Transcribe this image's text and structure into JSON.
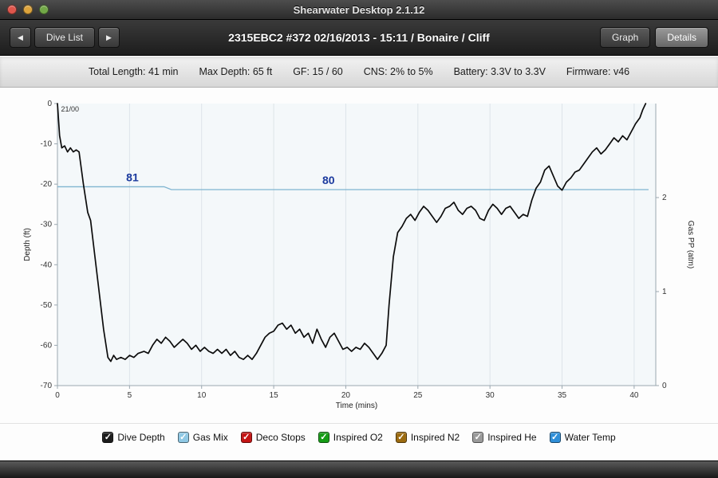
{
  "window": {
    "title": "Shearwater Desktop 2.1.12"
  },
  "nav": {
    "left_arrow": "◀",
    "right_arrow": "▶",
    "dive_list_label": "Dive List",
    "title": "2315EBC2 #372 02/16/2013 - 15:11  / Bonaire / Cliff",
    "graph_label": "Graph",
    "details_label": "Details"
  },
  "info_bar": {
    "items": [
      {
        "label": "Total Length:",
        "value": "41 min"
      },
      {
        "label": "Max Depth:",
        "value": "65 ft"
      },
      {
        "label": "GF:",
        "value": "15 / 60"
      },
      {
        "label": "CNS:",
        "value": "2% to 5%"
      },
      {
        "label": "Battery:",
        "value": "3.3V to 3.3V"
      },
      {
        "label": "Firmware:",
        "value": "v46"
      }
    ]
  },
  "chart_data": {
    "type": "line",
    "xlabel": "Time (mins)",
    "ylabel_left": "Depth (ft)",
    "ylabel_right": "Gas PP (atm)",
    "xlim": [
      0,
      41.5
    ],
    "ylim_left": [
      -70,
      0
    ],
    "ylim_right": [
      0,
      3
    ],
    "x_ticks": [
      0,
      5,
      10,
      15,
      20,
      25,
      30,
      35,
      40
    ],
    "y_ticks_left": [
      0,
      -10,
      -20,
      -30,
      -40,
      -50,
      -60,
      -70
    ],
    "y_ticks_right": [
      0,
      1,
      2
    ],
    "grid": "vertical",
    "annotation": "21/00",
    "label_color": "#1b3a9e",
    "temp_labels": [
      {
        "text": "81",
        "t": 5.2
      },
      {
        "text": "80",
        "t": 18.8
      }
    ],
    "series": [
      {
        "name": "Dive Depth",
        "color": "#0c0c0c",
        "x": [
          0,
          0.15,
          0.3,
          0.5,
          0.7,
          0.9,
          1.1,
          1.3,
          1.5,
          1.8,
          2.1,
          2.3,
          2.6,
          2.9,
          3.2,
          3.5,
          3.7,
          3.9,
          4.1,
          4.4,
          4.7,
          5,
          5.3,
          5.6,
          6,
          6.3,
          6.6,
          6.9,
          7.2,
          7.5,
          7.8,
          8.1,
          8.4,
          8.7,
          9,
          9.3,
          9.6,
          9.9,
          10.2,
          10.5,
          10.8,
          11.1,
          11.4,
          11.7,
          12,
          12.3,
          12.6,
          12.9,
          13.2,
          13.5,
          13.8,
          14.1,
          14.4,
          14.7,
          15,
          15.3,
          15.6,
          15.9,
          16.2,
          16.5,
          16.8,
          17.1,
          17.4,
          17.7,
          18,
          18.3,
          18.6,
          18.9,
          19.2,
          19.5,
          19.8,
          20.1,
          20.4,
          20.7,
          21,
          21.3,
          21.6,
          21.9,
          22.2,
          22.5,
          22.8,
          23,
          23.3,
          23.6,
          23.9,
          24.2,
          24.5,
          24.8,
          25.1,
          25.4,
          25.7,
          26,
          26.3,
          26.6,
          26.9,
          27.2,
          27.5,
          27.8,
          28.1,
          28.4,
          28.7,
          29,
          29.3,
          29.6,
          29.9,
          30.2,
          30.5,
          30.8,
          31.1,
          31.4,
          31.7,
          32,
          32.3,
          32.6,
          32.9,
          33.2,
          33.5,
          33.8,
          34.1,
          34.4,
          34.7,
          35,
          35.3,
          35.6,
          35.9,
          36.2,
          36.5,
          36.8,
          37.1,
          37.4,
          37.7,
          38,
          38.3,
          38.6,
          38.9,
          39.2,
          39.5,
          39.8,
          40.1,
          40.4,
          40.6,
          40.8
        ],
        "y": [
          0,
          -8,
          -11,
          -10.5,
          -12,
          -11,
          -12,
          -11.5,
          -12,
          -20,
          -27,
          -29,
          -38,
          -47,
          -56,
          -63,
          -64,
          -62.5,
          -63.5,
          -63,
          -63.5,
          -62.5,
          -63,
          -62,
          -61.5,
          -62,
          -60,
          -58.5,
          -59.5,
          -58,
          -59,
          -60.5,
          -59.5,
          -58.5,
          -59.5,
          -61,
          -60,
          -61.5,
          -60.5,
          -61.5,
          -62,
          -61,
          -62,
          -61,
          -62.5,
          -61.5,
          -63,
          -63.5,
          -62.5,
          -63.5,
          -62,
          -60,
          -58,
          -57,
          -56.5,
          -55,
          -54.5,
          -56,
          -55,
          -57,
          -56,
          -58,
          -57,
          -59.5,
          -56,
          -58.5,
          -60.5,
          -58,
          -57,
          -59,
          -61,
          -60.5,
          -61.5,
          -60.5,
          -61,
          -59.5,
          -60.5,
          -62,
          -63.5,
          -62,
          -60,
          -50,
          -38,
          -32,
          -30.5,
          -28.5,
          -27.5,
          -29,
          -27,
          -25.5,
          -26.5,
          -28,
          -29.5,
          -28,
          -26,
          -25.5,
          -24.5,
          -26.5,
          -27.5,
          -26,
          -25.5,
          -26.5,
          -28.5,
          -29,
          -26.5,
          -25,
          -26,
          -27.5,
          -26,
          -25.5,
          -27,
          -28.5,
          -27.5,
          -28,
          -24,
          -21,
          -19.5,
          -16.5,
          -15.5,
          -18,
          -20.5,
          -21.5,
          -19.5,
          -18.5,
          -17,
          -16.5,
          -15,
          -13.5,
          -12,
          -11,
          -12.5,
          -11.5,
          -10,
          -8.5,
          -9.5,
          -8,
          -9,
          -7,
          -5,
          -3.5,
          -1.5,
          0
        ]
      },
      {
        "name": "Water Temp",
        "color": "#7fb4d0",
        "unit": "F",
        "x": [
          0,
          7.4,
          7.9,
          41
        ],
        "y": [
          81,
          81,
          80,
          80
        ]
      }
    ]
  },
  "legend": {
    "items": [
      {
        "label": "Dive Depth",
        "color": "#1c1c1c",
        "checked": true
      },
      {
        "label": "Gas Mix",
        "color": "#8fc8e4",
        "checked": true
      },
      {
        "label": "Deco Stops",
        "color": "#c41414",
        "checked": true
      },
      {
        "label": "Inspired O2",
        "color": "#169c16",
        "checked": true
      },
      {
        "label": "Inspired N2",
        "color": "#9c6b10",
        "checked": true
      },
      {
        "label": "Inspired He",
        "color": "#9a9a9a",
        "checked": true
      },
      {
        "label": "Water Temp",
        "color": "#2f8fd8",
        "checked": true
      }
    ]
  }
}
